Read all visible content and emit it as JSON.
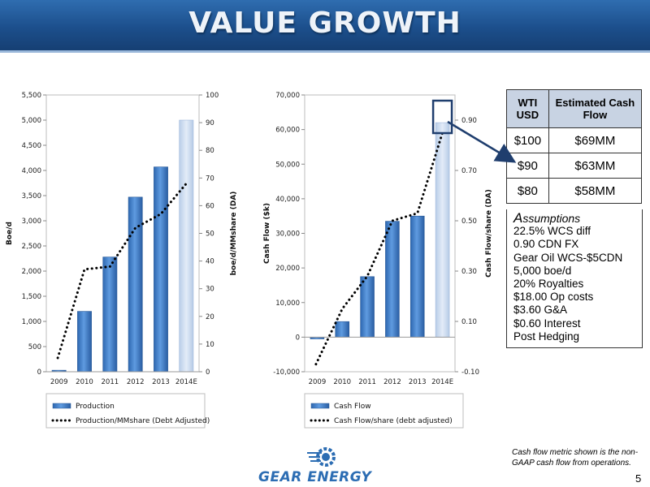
{
  "title": "VALUE GROWTH",
  "chart_data": [
    {
      "type": "bar",
      "categories": [
        "2009",
        "2010",
        "2011",
        "2012",
        "2013",
        "2014E"
      ],
      "series": [
        {
          "name": "Production",
          "type": "bar",
          "axis": "left",
          "values": [
            30,
            1200,
            2280,
            3470,
            4070,
            5000
          ]
        },
        {
          "name": "Production/MMshare (Debt Adjusted)",
          "type": "line",
          "style": "dotted",
          "axis": "right",
          "values": [
            5,
            37,
            38,
            52,
            57,
            68
          ]
        }
      ],
      "ylabel": "Boe/d",
      "y2label": "boe/d/MMshare (DA)",
      "ylim": [
        0,
        5500
      ],
      "y2lim": [
        0,
        100
      ],
      "yticks": [
        "0",
        "500",
        "1,000",
        "1,500",
        "2,000",
        "2,500",
        "3,000",
        "3,500",
        "4,000",
        "4,500",
        "5,000",
        "5,500"
      ],
      "y2ticks": [
        "0",
        "10",
        "20",
        "30",
        "40",
        "50",
        "60",
        "70",
        "80",
        "90",
        "100"
      ],
      "highlight_last_bar": true,
      "legend": "bottom"
    },
    {
      "type": "bar",
      "categories": [
        "2009",
        "2010",
        "2011",
        "2012",
        "2013",
        "2014E"
      ],
      "series": [
        {
          "name": "Cash Flow",
          "type": "bar",
          "axis": "left",
          "values": [
            -500,
            4500,
            17500,
            33500,
            35000,
            62000
          ]
        },
        {
          "name": "Cash Flow/share (debt adjusted)",
          "type": "line",
          "style": "dotted",
          "axis": "right",
          "values": [
            -0.07,
            0.15,
            0.28,
            0.5,
            0.53,
            0.85
          ]
        }
      ],
      "ylabel": "Cash Flow ($k)",
      "y2label": "Cash Flow/share (DA)",
      "ylim": [
        -10000,
        70000
      ],
      "y2lim": [
        -0.1,
        1.0
      ],
      "yticks": [
        "-10,000",
        "0",
        "10,000",
        "20,000",
        "30,000",
        "40,000",
        "50,000",
        "60,000",
        "70,000"
      ],
      "y2ticks": [
        "-0.10",
        "0.10",
        "0.30",
        "0.50",
        "0.70",
        "0.90"
      ],
      "highlight_last_bar": true,
      "legend": "bottom"
    }
  ],
  "table": {
    "headers": [
      "WTI USD",
      "Estimated Cash Flow"
    ],
    "rows": [
      [
        "$100",
        "$69MM"
      ],
      [
        "$90",
        "$63MM"
      ],
      [
        "$80",
        "$58MM"
      ]
    ]
  },
  "assumptions": {
    "title": "Assumptions",
    "items": [
      "22.5% WCS diff",
      "0.90 CDN FX",
      "Gear Oil WCS-$5CDN",
      "5,000 boe/d",
      "20% Royalties",
      "$18.00 Op costs",
      "$3.60 G&A",
      "$0.60 Interest",
      "Post Hedging"
    ]
  },
  "footnote": "Cash flow metric shown is the non-GAAP cash flow from operations.",
  "page_number": "5",
  "logo_text": "GEAR ENERGY",
  "colors": {
    "title_bar": "#1f568f",
    "bar": "#3f7ec8",
    "bar_highlight": "#c9daf0",
    "callout": "#1f3e6e"
  }
}
